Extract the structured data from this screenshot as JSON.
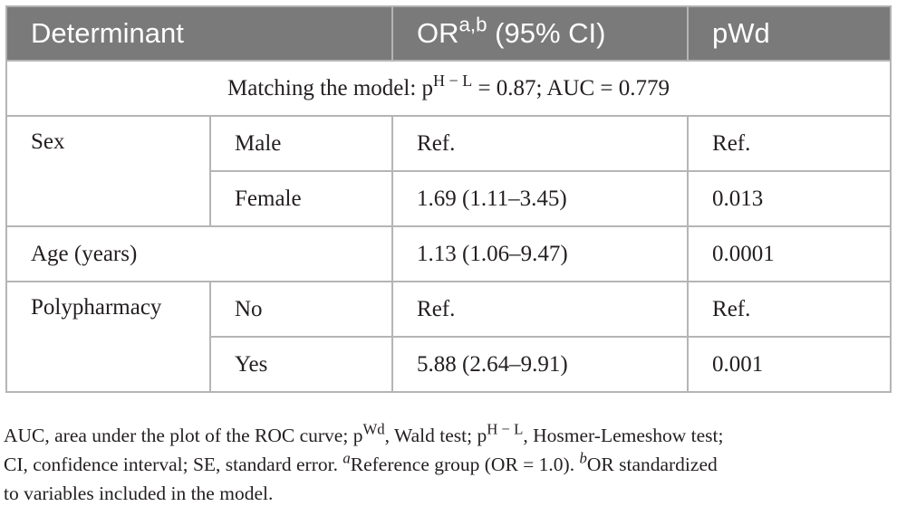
{
  "table": {
    "headers": {
      "determinant": "Determinant",
      "or_main": "OR",
      "or_sup": "a,b",
      "or_ci": " (95% CI)",
      "p_main": "p",
      "p_sub": "Wd"
    },
    "model_row": {
      "prefix": "Matching the model: p",
      "sup": "H − L",
      "suffix": " = 0.87; AUC = 0.779"
    },
    "rows": {
      "sex": {
        "label": "Sex",
        "male": {
          "category": "Male",
          "or": "Ref.",
          "p": "Ref."
        },
        "female": {
          "category": "Female",
          "or": "1.69 (1.11–3.45)",
          "p": "0.013"
        }
      },
      "age": {
        "label": "Age (years)",
        "or": "1.13 (1.06–9.47)",
        "p": "0.0001"
      },
      "polypharmacy": {
        "label": "Polypharmacy",
        "no": {
          "category": "No",
          "or": "Ref.",
          "p": "Ref."
        },
        "yes": {
          "category": "Yes",
          "or": "5.88 (2.64–9.91)",
          "p": "0.001"
        }
      }
    }
  },
  "footnote": {
    "line1_a": "AUC, area under the plot of the ROC curve; p",
    "line1_sup1": "Wd",
    "line1_b": ", Wald test; p",
    "line1_sup2": "H − L",
    "line1_c": ", Hosmer-Lemeshow test;",
    "line2_a": "CI, confidence interval; SE, standard error. ",
    "line2_sup_a": "a",
    "line2_b": "Reference group (OR = 1.0). ",
    "line2_sup_b": "b",
    "line2_c": "OR standardized",
    "line3": "to variables included in the model."
  }
}
